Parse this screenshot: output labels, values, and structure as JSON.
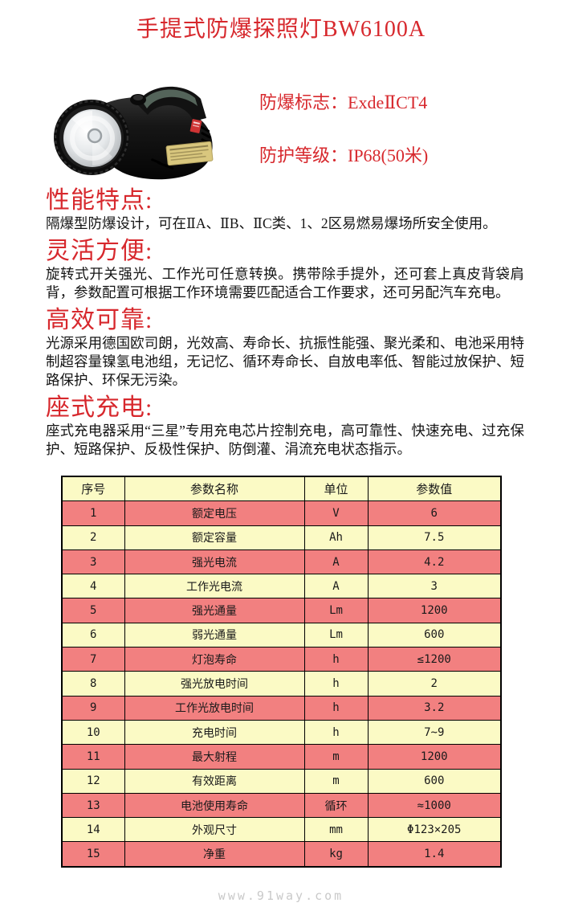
{
  "page_title": "手提式防爆探照灯BW6100A",
  "hero": {
    "image_label": "BW6100A 手提式防爆探照灯产品照片",
    "badges": [
      "防爆标志：ExdeⅡCT4",
      "防护等级：IP68(50米)"
    ]
  },
  "sections": [
    {
      "heading": "性能特点:",
      "body": "隔爆型防爆设计，可在ⅡA、ⅡB、ⅡC类、1、2区易燃易爆场所安全使用。"
    },
    {
      "heading": "灵活方便:",
      "body": "旋转式开关强光、工作光可任意转换。携带除手提外，还可套上真皮背袋肩背，参数配置可根据工作环境需要匹配适合工作要求，还可另配汽车充电。"
    },
    {
      "heading": "高效可靠:",
      "body": "光源采用德国欧司朗，光效高、寿命长、抗振性能强、聚光柔和、电池采用特制超容量镍氢电池组，无记忆、循环寿命长、自放电率低、智能过放保护、短路保护、环保无污染。"
    },
    {
      "heading": "座式充电:",
      "body": "座式充电器采用“三星”专用充电芯片控制充电，高可靠性、快速充电、过充保护、短路保护、反极性保护、防倒灌、涓流充电状态指示。"
    }
  ],
  "spec_table": {
    "headers": [
      "序号",
      "参数名称",
      "单位",
      "参数值"
    ],
    "rows": [
      [
        "1",
        "额定电压",
        "V",
        "6"
      ],
      [
        "2",
        "额定容量",
        "Ah",
        "7.5"
      ],
      [
        "3",
        "强光电流",
        "A",
        "4.2"
      ],
      [
        "4",
        "工作光电流",
        "A",
        "3"
      ],
      [
        "5",
        "强光通量",
        "Lm",
        "1200"
      ],
      [
        "6",
        "弱光通量",
        "Lm",
        "600"
      ],
      [
        "7",
        "灯泡寿命",
        "h",
        "≤1200"
      ],
      [
        "8",
        "强光放电时间",
        "h",
        "2"
      ],
      [
        "9",
        "工作光放电时间",
        "h",
        "3.2"
      ],
      [
        "10",
        "充电时间",
        "h",
        "7~9"
      ],
      [
        "11",
        "最大射程",
        "m",
        "1200"
      ],
      [
        "12",
        "有效距离",
        "m",
        "600"
      ],
      [
        "13",
        "电池使用寿命",
        "循环",
        "≈1000"
      ],
      [
        "14",
        "外观尺寸",
        "mm",
        "Φ123×205"
      ],
      [
        "15",
        "净重",
        "kg",
        "1.4"
      ]
    ]
  },
  "watermark": "www.91way.com",
  "colors": {
    "accent_red": "#d7282d",
    "table_row_pink": "#f28080",
    "table_row_yellow": "#fbfac5",
    "table_border": "#000000",
    "watermark_gray": "#c9c9c9"
  }
}
